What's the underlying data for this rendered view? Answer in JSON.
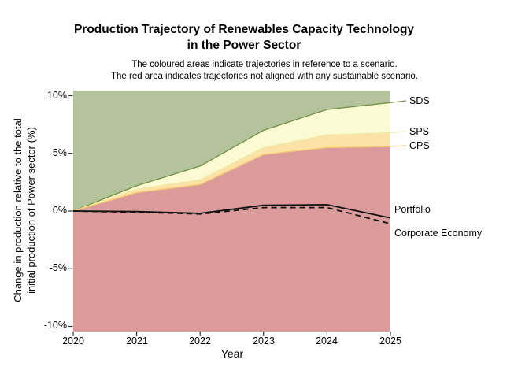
{
  "header": {
    "title_line1": "Production Trajectory of Renewables Capacity Technology",
    "title_line2": "in the Power Sector",
    "subtitle_line1": "The coloured areas indicate trajectories in reference to a scenario.",
    "subtitle_line2": "The red area indicates trajectories not aligned with any sustainable scenario."
  },
  "chart_data": {
    "type": "area",
    "x": [
      2020,
      2021,
      2022,
      2023,
      2024,
      2025
    ],
    "x_tick_labels": [
      "2020",
      "2021",
      "2022",
      "2023",
      "2024",
      "2025"
    ],
    "y_ticks": [
      10,
      5,
      0,
      -5,
      -10
    ],
    "y_tick_labels": [
      "10%",
      "5%",
      "0%",
      "-5%",
      "-10%"
    ],
    "xlabel": "Year",
    "ylabel_line1": "Change in production relative to the total",
    "ylabel_line2": "initial production of Power sector (%)",
    "ylim": [
      -10.4,
      10.4
    ],
    "grid": false,
    "legend_position": "right-margin",
    "series": [
      {
        "name": "SDS",
        "role": "scenario-boundary",
        "values": [
          0,
          2.2,
          3.9,
          7.0,
          8.8,
          9.4
        ],
        "line_color": "#74944c",
        "area_above_color": "#b4c39c"
      },
      {
        "name": "SPS",
        "role": "scenario-boundary",
        "values": [
          0,
          1.9,
          2.7,
          5.5,
          6.6,
          6.8
        ],
        "line_color": "#eeeba8",
        "area_above_color": "#fbfad2"
      },
      {
        "name": "CPS",
        "role": "scenario-boundary",
        "values": [
          0,
          1.6,
          2.3,
          4.9,
          5.5,
          5.6
        ],
        "line_color": "#f2ca6e",
        "area_above_color": "#fce2a7"
      },
      {
        "name": "Portfolio",
        "role": "trajectory",
        "style": "solid",
        "line_color": "#111111",
        "values": [
          0,
          -0.05,
          -0.2,
          0.5,
          0.55,
          -0.6
        ]
      },
      {
        "name": "Corporate Economy",
        "role": "trajectory",
        "style": "dashed",
        "line_color": "#111111",
        "values": [
          0,
          -0.1,
          -0.25,
          0.3,
          0.3,
          -1.1
        ]
      }
    ],
    "not_aligned_area_color": "#dc9b9b",
    "background_color": "#ffffff"
  },
  "legend": {
    "sds": "SDS",
    "sps": "SPS",
    "cps": "CPS",
    "portfolio": "Portfolio",
    "corporate_economy": "Corporate Economy"
  }
}
